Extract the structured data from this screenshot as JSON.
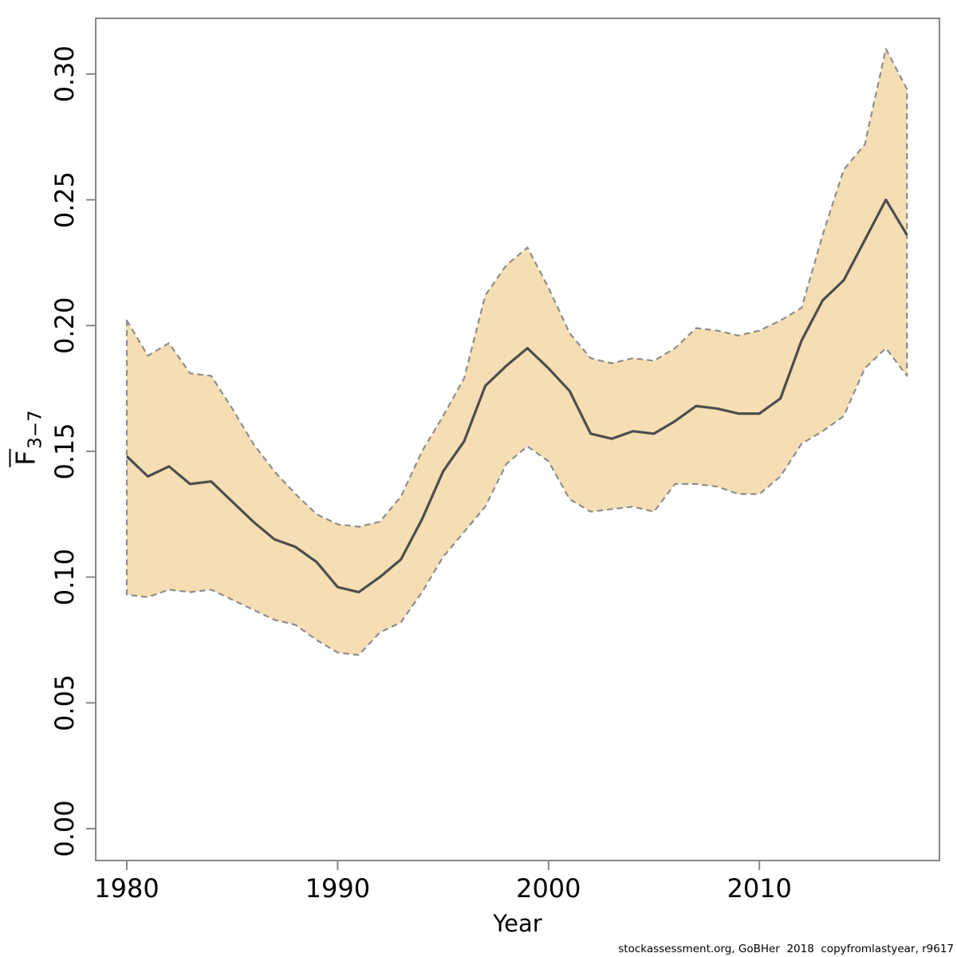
{
  "figure": {
    "footer": "stockassessment.org, GoBHer  2018  copyfromlastyear, r9617"
  },
  "chart_data": {
    "type": "line",
    "title": "",
    "xlabel": "Year",
    "ylabel": "F̄3−7",
    "ylabel_parts": {
      "letter": "F",
      "subscript": "3−7"
    },
    "x": [
      1980,
      1981,
      1982,
      1983,
      1984,
      1985,
      1986,
      1987,
      1988,
      1989,
      1990,
      1991,
      1992,
      1993,
      1994,
      1995,
      1996,
      1997,
      1998,
      1999,
      2000,
      2001,
      2002,
      2003,
      2004,
      2005,
      2006,
      2007,
      2008,
      2009,
      2010,
      2011,
      2012,
      2013,
      2014,
      2015,
      2016,
      2017
    ],
    "series": [
      {
        "name": "mean",
        "values": [
          0.148,
          0.14,
          0.144,
          0.137,
          0.138,
          0.13,
          0.122,
          0.115,
          0.112,
          0.106,
          0.096,
          0.094,
          0.1,
          0.107,
          0.123,
          0.142,
          0.154,
          0.176,
          0.184,
          0.191,
          0.183,
          0.174,
          0.157,
          0.155,
          0.158,
          0.157,
          0.162,
          0.168,
          0.167,
          0.165,
          0.165,
          0.171,
          0.194,
          0.21,
          0.218,
          0.234,
          0.25,
          0.236
        ]
      },
      {
        "name": "lower",
        "values": [
          0.093,
          0.092,
          0.095,
          0.094,
          0.095,
          0.091,
          0.087,
          0.083,
          0.081,
          0.075,
          0.07,
          0.069,
          0.078,
          0.082,
          0.094,
          0.108,
          0.118,
          0.128,
          0.145,
          0.152,
          0.146,
          0.131,
          0.126,
          0.127,
          0.128,
          0.126,
          0.137,
          0.137,
          0.136,
          0.133,
          0.133,
          0.14,
          0.153,
          0.158,
          0.164,
          0.183,
          0.191,
          0.18
        ]
      },
      {
        "name": "upper",
        "values": [
          0.202,
          0.188,
          0.193,
          0.181,
          0.18,
          0.167,
          0.153,
          0.142,
          0.133,
          0.125,
          0.121,
          0.12,
          0.122,
          0.132,
          0.15,
          0.164,
          0.179,
          0.212,
          0.224,
          0.231,
          0.215,
          0.197,
          0.187,
          0.185,
          0.187,
          0.186,
          0.191,
          0.199,
          0.198,
          0.196,
          0.198,
          0.202,
          0.207,
          0.236,
          0.262,
          0.272,
          0.31,
          0.294
        ]
      }
    ],
    "x_ticks": [
      "1980",
      "1990",
      "2000",
      "2010"
    ],
    "x_tick_values": [
      1980,
      1990,
      2000,
      2010
    ],
    "y_ticks": [
      "0.00",
      "0.05",
      "0.10",
      "0.15",
      "0.20",
      "0.25",
      "0.30"
    ],
    "y_tick_values": [
      0.0,
      0.05,
      0.1,
      0.15,
      0.2,
      0.25,
      0.3
    ],
    "xlim": [
      1978.5,
      2018.5
    ],
    "ylim": [
      -0.013,
      0.322
    ],
    "grid": false,
    "legend": false,
    "colors": {
      "band_fill": "#f5deb3",
      "band_edge": "#8d8d8d",
      "line": "#4d4d4d",
      "axis": "#878787",
      "text": "#000000"
    }
  }
}
